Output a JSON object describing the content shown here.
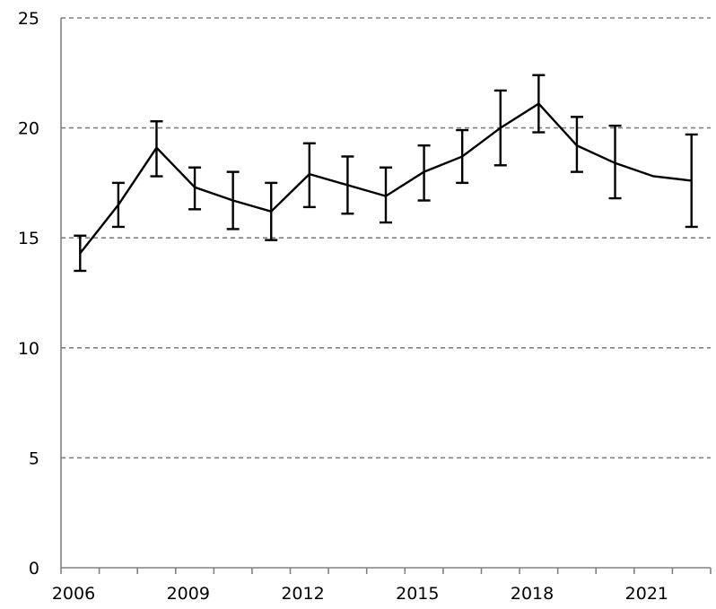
{
  "chart_data": {
    "type": "line",
    "x": [
      "2006",
      "2007",
      "2008",
      "2009",
      "2010",
      "2011",
      "2012",
      "2013",
      "2014",
      "2015",
      "2016",
      "2017",
      "2018",
      "2019",
      "2020",
      "2021",
      "2022"
    ],
    "values": [
      14.3,
      16.5,
      19.1,
      17.3,
      16.7,
      16.2,
      17.9,
      17.4,
      16.9,
      18.0,
      18.7,
      20.0,
      21.1,
      19.2,
      18.4,
      17.8,
      17.6
    ],
    "error_low": [
      13.5,
      15.5,
      17.8,
      16.3,
      15.4,
      14.9,
      16.4,
      16.1,
      15.7,
      16.7,
      17.5,
      18.3,
      19.8,
      18.0,
      16.8,
      17.8,
      15.5
    ],
    "error_high": [
      15.1,
      17.5,
      20.3,
      18.2,
      18.0,
      17.5,
      19.3,
      18.7,
      18.2,
      19.2,
      19.9,
      21.7,
      22.4,
      20.5,
      20.1,
      17.8,
      19.7
    ],
    "x_tick_labels": [
      "2006",
      "2009",
      "2012",
      "2015",
      "2018",
      "2021"
    ],
    "y_tick_labels": [
      "0",
      "5",
      "10",
      "15",
      "20",
      "25"
    ],
    "ylim": [
      0,
      25
    ],
    "grid": "horizontal-dashed",
    "line_color": "#000000",
    "grid_color": "#808080"
  }
}
